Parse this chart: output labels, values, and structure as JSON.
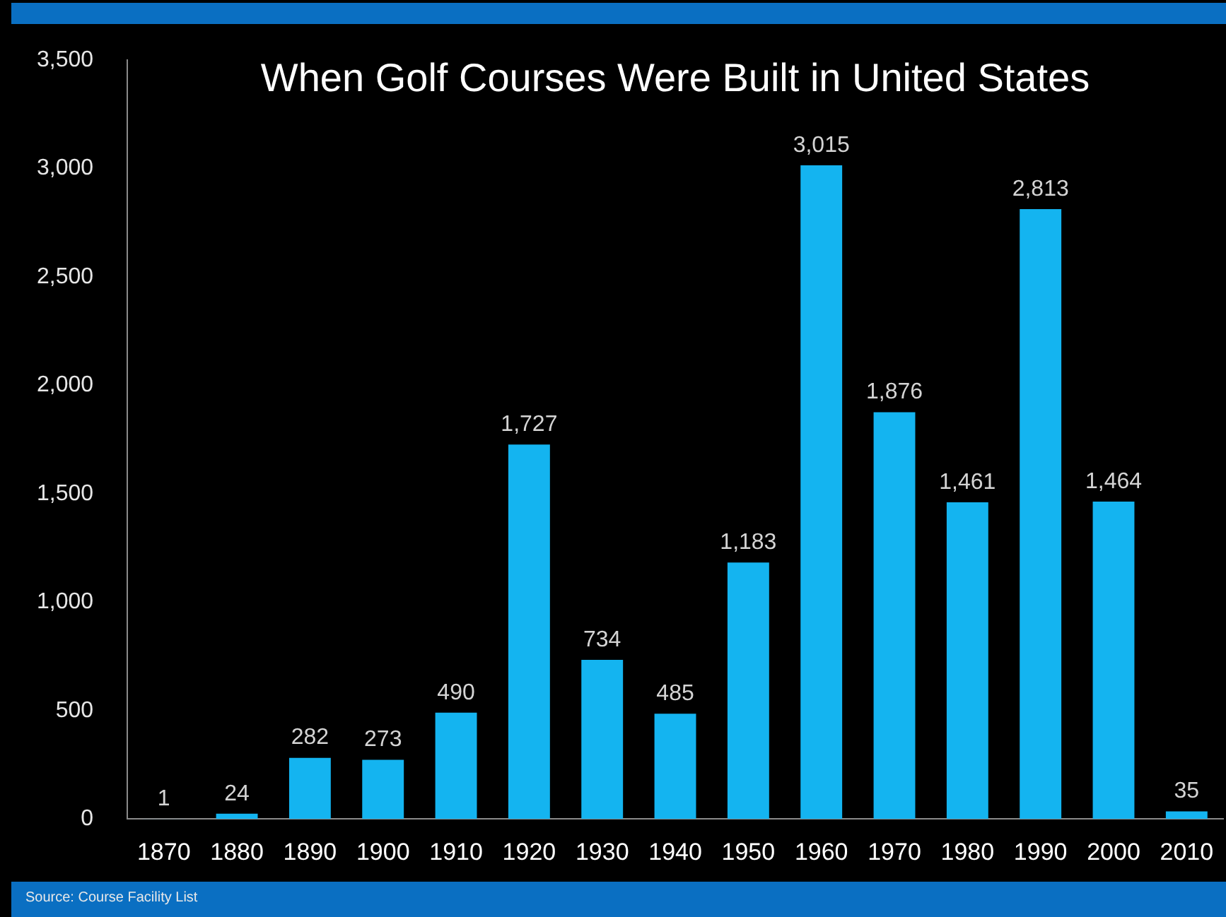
{
  "chart_data": {
    "type": "bar",
    "title": "When Golf Courses Were Built in United States",
    "categories": [
      "1870",
      "1880",
      "1890",
      "1900",
      "1910",
      "1920",
      "1930",
      "1940",
      "1950",
      "1960",
      "1970",
      "1980",
      "1990",
      "2000",
      "2010"
    ],
    "values": [
      1,
      24,
      282,
      273,
      490,
      1727,
      734,
      485,
      1183,
      3015,
      1876,
      1461,
      2813,
      1464,
      35
    ],
    "value_labels": [
      "1",
      "24",
      "282",
      "273",
      "490",
      "1,727",
      "734",
      "485",
      "1,183",
      "3,015",
      "1,876",
      "1,461",
      "2,813",
      "1,464",
      "35"
    ],
    "color": "#14b4f0",
    "ylim": [
      0,
      3500
    ],
    "yticks": [
      0,
      500,
      {
        "value": 1000,
        "label": "1,000"
      },
      {
        "value": 1500,
        "label": "1,500"
      },
      {
        "value": 2000,
        "label": "2,000"
      },
      {
        "value": 2500,
        "label": "2,500"
      },
      {
        "value": 3000,
        "label": "3,000"
      },
      {
        "value": 3500,
        "label": "3,500"
      }
    ],
    "annotations": [
      "Source: Course Facility List"
    ]
  }
}
